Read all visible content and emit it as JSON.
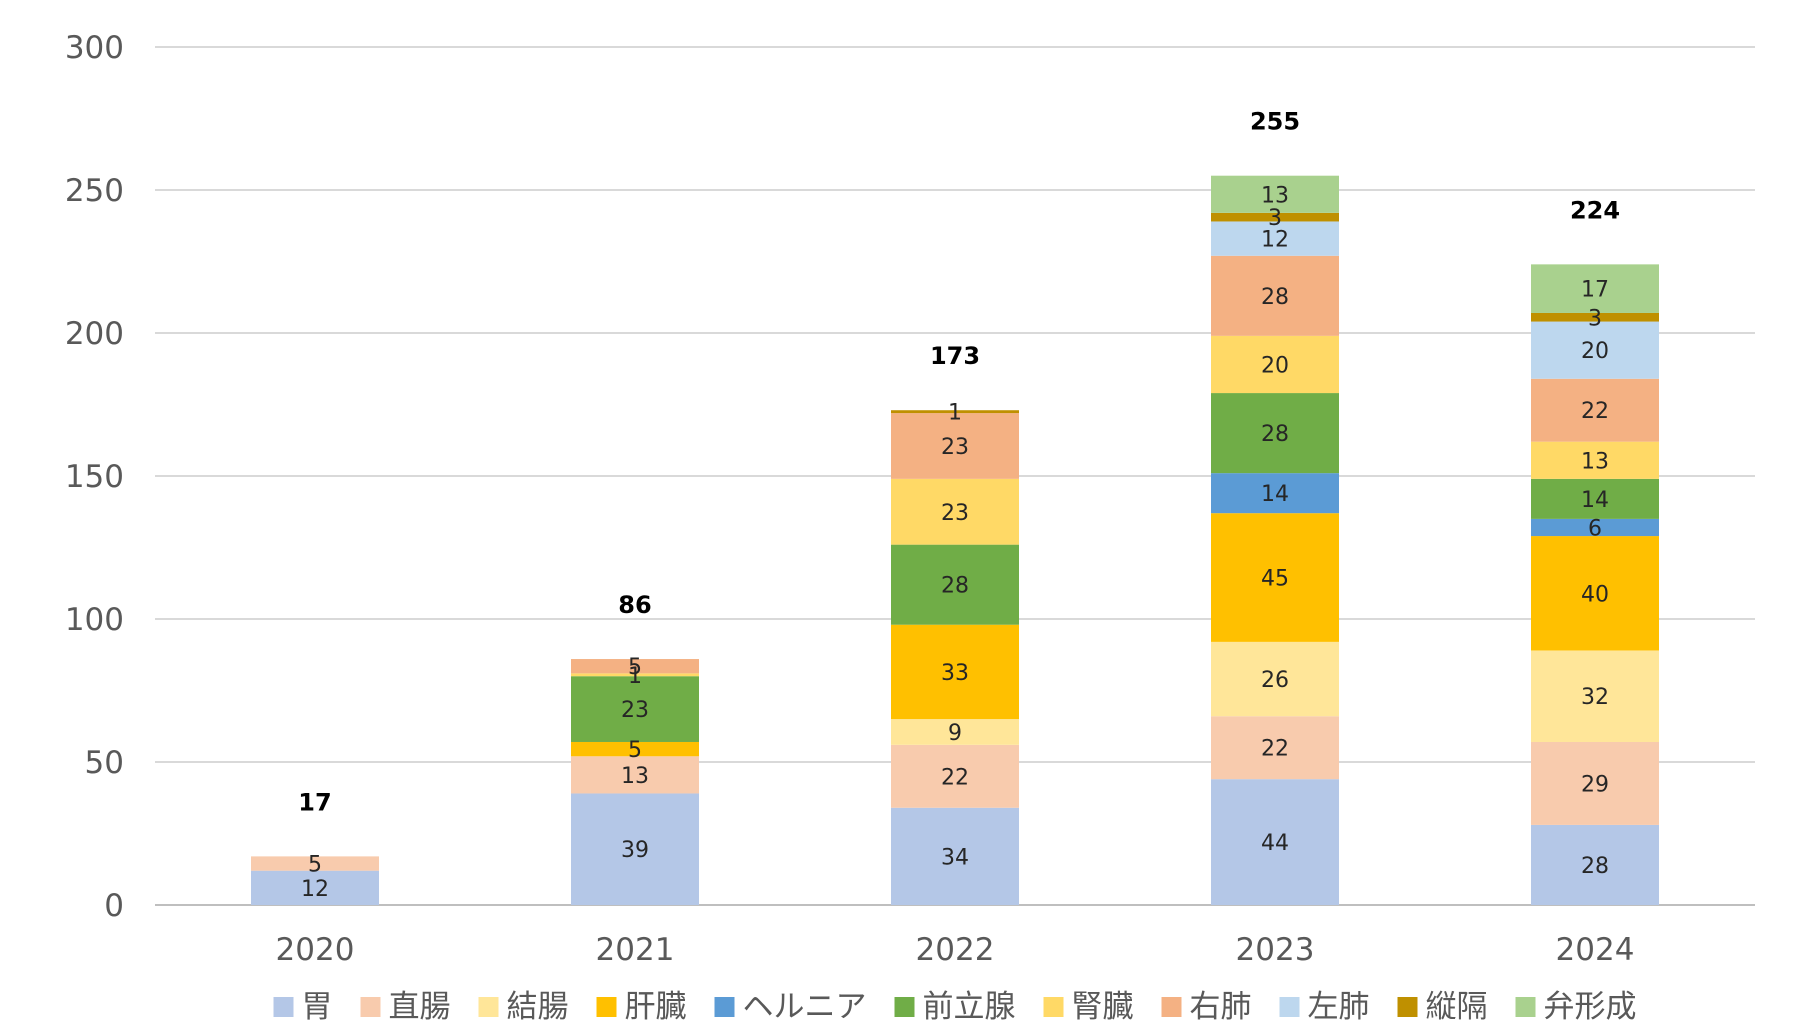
{
  "chart_data": {
    "type": "bar",
    "stacked": true,
    "categories": [
      "2020",
      "2021",
      "2022",
      "2023",
      "2024"
    ],
    "ylim": [
      0,
      300
    ],
    "yticks": [
      0,
      50,
      100,
      150,
      200,
      250,
      300
    ],
    "grid": true,
    "legend_position": "bottom",
    "totals": [
      17,
      86,
      173,
      255,
      224
    ],
    "series": [
      {
        "name": "胃",
        "color": "#B4C7E7",
        "values": [
          12,
          39,
          34,
          44,
          28
        ]
      },
      {
        "name": "直腸",
        "color": "#F8CBAD",
        "values": [
          5,
          13,
          22,
          22,
          29
        ]
      },
      {
        "name": "結腸",
        "color": "#FFE699",
        "values": [
          0,
          0,
          9,
          26,
          32
        ]
      },
      {
        "name": "肝臓",
        "color": "#FFC000",
        "values": [
          0,
          5,
          33,
          45,
          40
        ]
      },
      {
        "name": "ヘルニア",
        "color": "#5B9BD5",
        "values": [
          0,
          0,
          0,
          14,
          6
        ]
      },
      {
        "name": "前立腺",
        "color": "#70AD47",
        "values": [
          0,
          23,
          28,
          28,
          14
        ]
      },
      {
        "name": "腎臓",
        "color": "#FFD966",
        "values": [
          0,
          1,
          23,
          20,
          13
        ]
      },
      {
        "name": "右肺",
        "color": "#F4B183",
        "values": [
          0,
          5,
          23,
          28,
          22
        ]
      },
      {
        "name": "左肺",
        "color": "#BDD7EE",
        "values": [
          0,
          0,
          0,
          12,
          20
        ]
      },
      {
        "name": "縦隔",
        "color": "#BF9000",
        "values": [
          0,
          0,
          1,
          3,
          3
        ]
      },
      {
        "name": "弁形成",
        "color": "#A9D18E",
        "values": [
          0,
          0,
          0,
          13,
          17
        ]
      }
    ]
  }
}
